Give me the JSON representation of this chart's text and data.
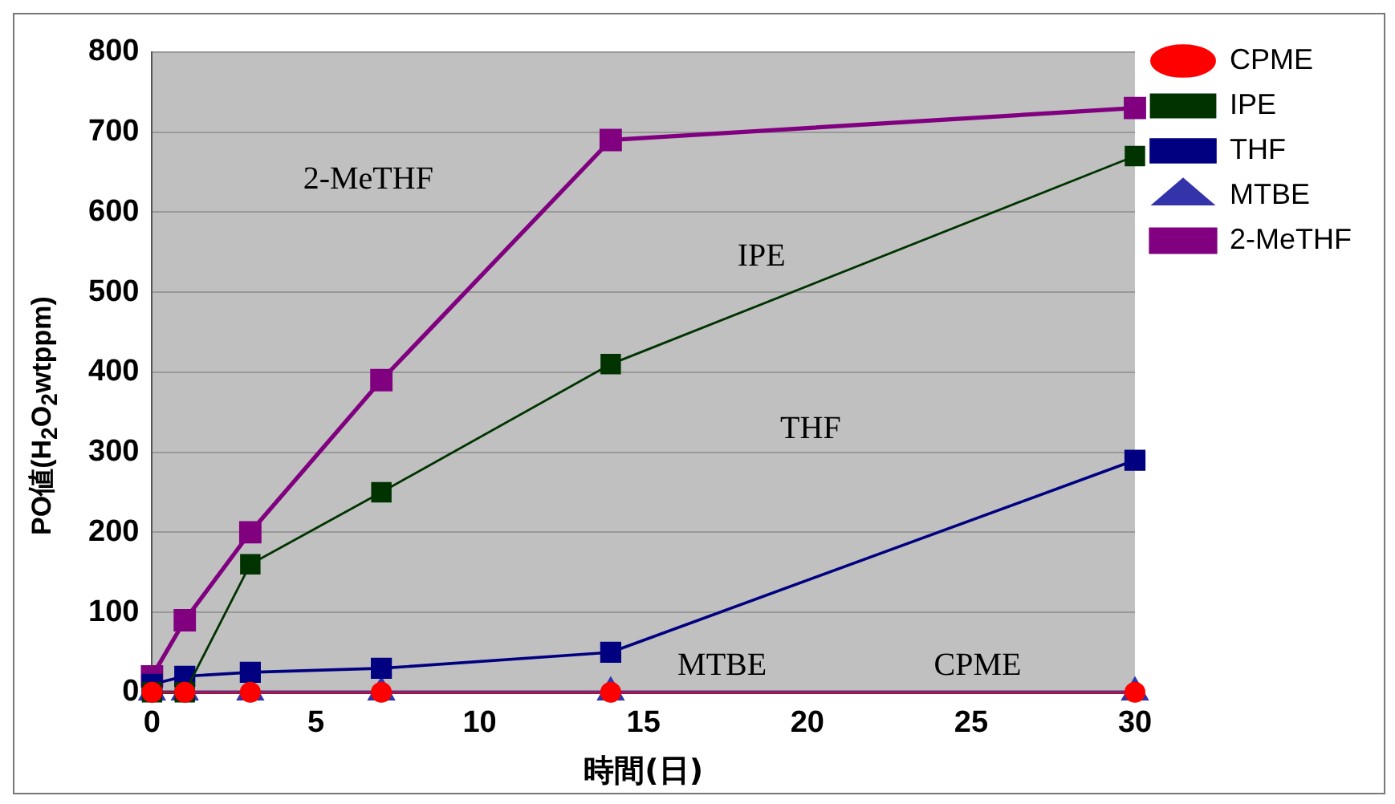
{
  "chart_data": {
    "type": "line",
    "xlabel": "時間(日)",
    "ylabel": "PO値(H$_{2}$O$_{2}$wtppm)",
    "x": [
      0,
      1,
      3,
      7,
      14,
      30
    ],
    "series": [
      {
        "name": "CPME",
        "color": "#ff0000",
        "marker": "circle",
        "values": [
          0,
          0,
          0,
          0,
          0,
          0
        ]
      },
      {
        "name": "IPE",
        "color": "#003300",
        "marker": "square",
        "values": [
          0,
          0,
          160,
          250,
          410,
          670
        ]
      },
      {
        "name": "THF",
        "color": "#000080",
        "marker": "square",
        "values": [
          10,
          20,
          25,
          30,
          50,
          290
        ]
      },
      {
        "name": "MTBE",
        "color": "#3333aa",
        "marker": "triangle",
        "values": [
          0,
          0,
          0,
          0,
          0,
          0
        ]
      },
      {
        "name": "2-MeTHF",
        "color": "#800080",
        "marker": "square",
        "values": [
          20,
          90,
          200,
          390,
          690,
          730
        ]
      }
    ],
    "xlim": [
      0,
      30
    ],
    "xticks": [
      0,
      5,
      10,
      15,
      20,
      25,
      30
    ],
    "ylim": [
      0,
      800
    ],
    "yticks": [
      0,
      100,
      200,
      300,
      400,
      500,
      600,
      700,
      800
    ],
    "grid": "y",
    "legend": "top right",
    "line_style": "solid",
    "annotations": [
      "2-MeTHF",
      "IPE",
      "THF",
      "MTBE",
      "CPME"
    ]
  }
}
